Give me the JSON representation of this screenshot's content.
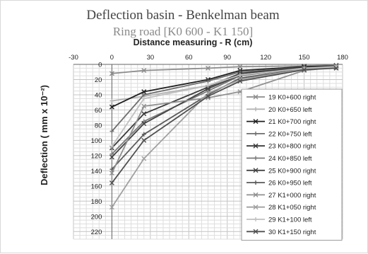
{
  "chart_data": {
    "type": "line",
    "title": "Deflection basin -  Benkelman beam",
    "subtitle": "Ring road [K0 600 - K1 150]",
    "xlabel": "Distance measuring - R (cm)",
    "ylabel": "Deflection ( mm x 10⁻²)",
    "xlim": [
      -30,
      180
    ],
    "ylim": [
      0,
      230
    ],
    "y_inverted": true,
    "x_ticks": [
      -30,
      0,
      30,
      60,
      90,
      120,
      150,
      180
    ],
    "y_ticks": [
      0,
      20,
      40,
      60,
      80,
      100,
      120,
      140,
      160,
      180,
      200,
      220
    ],
    "grid": true,
    "legend_position": "right",
    "x": [
      0,
      25,
      75,
      100,
      150,
      175
    ],
    "series": [
      {
        "name": "19 K0+600 right",
        "color": "#8c8c8c",
        "marker": "x",
        "values": [
          12,
          8,
          5,
          3,
          2,
          1
        ]
      },
      {
        "name": "20 K0+650 left",
        "color": "#b4b4b4",
        "marker": "cross",
        "values": [
          48,
          42,
          28,
          12,
          4,
          2
        ]
      },
      {
        "name": "21 K0+700 right",
        "color": "#202020",
        "marker": "x",
        "values": [
          56,
          36,
          20,
          8,
          3,
          2
        ]
      },
      {
        "name": "22 K0+750 left",
        "color": "#6e6e6e",
        "marker": "cross",
        "values": [
          88,
          40,
          22,
          10,
          4,
          3
        ]
      },
      {
        "name": "23 K0+800 right",
        "color": "#3a3a3a",
        "marker": "x",
        "values": [
          110,
          65,
          30,
          12,
          4,
          2
        ]
      },
      {
        "name": "24 K0+850 left",
        "color": "#7a7a7a",
        "marker": "cross",
        "values": [
          118,
          75,
          35,
          15,
          5,
          3
        ]
      },
      {
        "name": "25 K0+900 right",
        "color": "#444444",
        "marker": "x",
        "values": [
          122,
          78,
          32,
          14,
          5,
          2
        ]
      },
      {
        "name": "26 K0+950 left",
        "color": "#5a5a5a",
        "marker": "cross",
        "values": [
          138,
          92,
          40,
          18,
          6,
          4
        ]
      },
      {
        "name": "27 K1+000 right",
        "color": "#909090",
        "marker": "x",
        "values": [
          143,
          55,
          44,
          36,
          8,
          4
        ]
      },
      {
        "name": "28 K1+050 right",
        "color": "#a0a0a0",
        "marker": "x",
        "values": [
          188,
          124,
          38,
          20,
          6,
          3
        ]
      },
      {
        "name": "29 K1+100 left",
        "color": "#c0c0c0",
        "marker": "cross",
        "values": [
          108,
          45,
          28,
          14,
          5,
          3
        ]
      },
      {
        "name": "30 K1+150 right",
        "color": "#505050",
        "marker": "x",
        "values": [
          156,
          100,
          42,
          22,
          7,
          5
        ]
      }
    ]
  }
}
